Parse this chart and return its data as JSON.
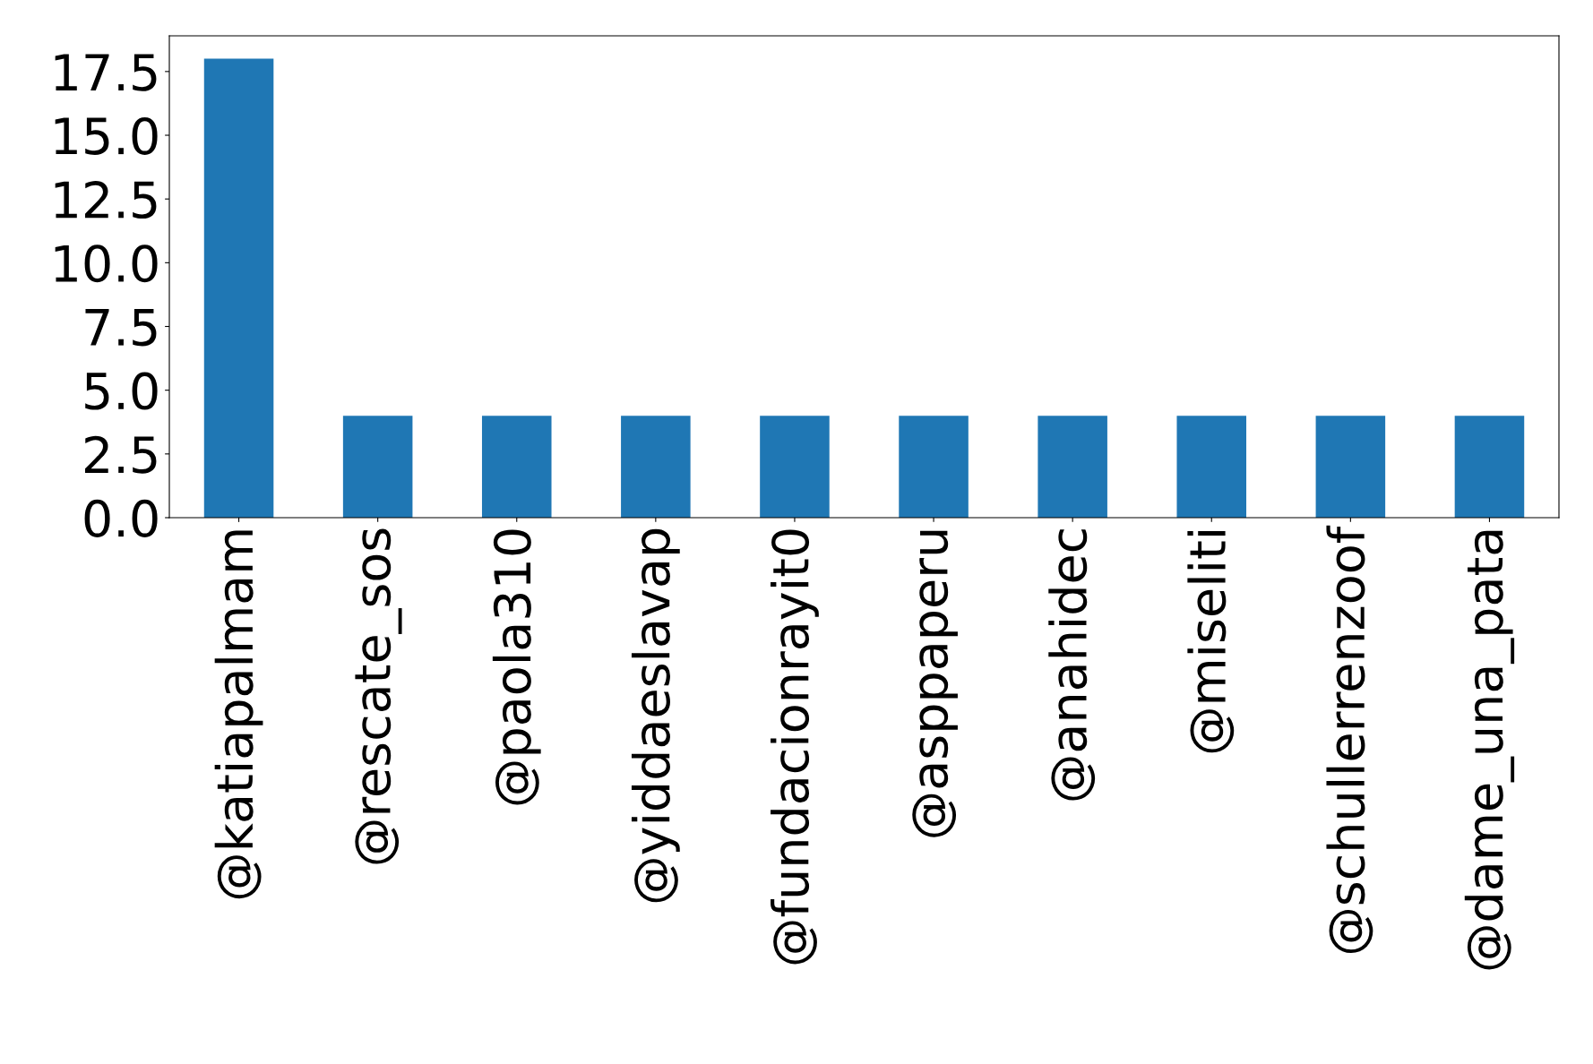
{
  "chart_data": {
    "type": "bar",
    "categories": [
      "@katiapalmam",
      "@rescate_sos",
      "@paola310",
      "@yiddaeslavap",
      "@fundacionrayit0",
      "@asppaperu",
      "@anahidec",
      "@miseliti",
      "@schullerrenzoof",
      "@dame_una_pata"
    ],
    "values": [
      18,
      4,
      4,
      4,
      4,
      4,
      4,
      4,
      4,
      4
    ],
    "color": "#1f77b4",
    "ylim": [
      0,
      18.9
    ],
    "yticks": [
      {
        "value": 0,
        "label": "0.0"
      },
      {
        "value": 2.5,
        "label": "2.5"
      },
      {
        "value": 5,
        "label": "5.0"
      },
      {
        "value": 7.5,
        "label": "7.5"
      },
      {
        "value": 10,
        "label": "10.0"
      },
      {
        "value": 12.5,
        "label": "12.5"
      },
      {
        "value": 15,
        "label": "15.0"
      },
      {
        "value": 17.5,
        "label": "17.5"
      }
    ],
    "grid": false,
    "legend": false
  }
}
